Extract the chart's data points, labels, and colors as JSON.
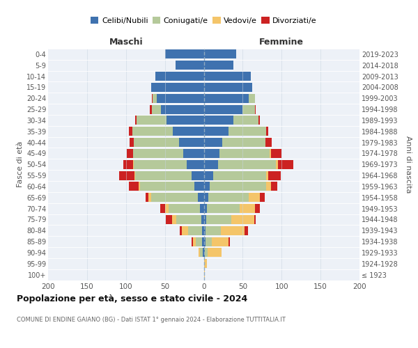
{
  "age_groups": [
    "100+",
    "95-99",
    "90-94",
    "85-89",
    "80-84",
    "75-79",
    "70-74",
    "65-69",
    "60-64",
    "55-59",
    "50-54",
    "45-49",
    "40-44",
    "35-39",
    "30-34",
    "25-29",
    "20-24",
    "15-19",
    "10-14",
    "5-9",
    "0-4"
  ],
  "birth_years": [
    "≤ 1923",
    "1924-1928",
    "1929-1933",
    "1934-1938",
    "1939-1943",
    "1944-1948",
    "1949-1953",
    "1954-1958",
    "1959-1963",
    "1964-1968",
    "1969-1973",
    "1974-1978",
    "1979-1983",
    "1984-1988",
    "1989-1993",
    "1994-1998",
    "1999-2003",
    "2004-2008",
    "2009-2013",
    "2014-2018",
    "2019-2023"
  ],
  "maschi": {
    "celibi": [
      0,
      0,
      1,
      2,
      2,
      3,
      5,
      8,
      12,
      16,
      22,
      26,
      32,
      40,
      48,
      55,
      60,
      68,
      62,
      36,
      50
    ],
    "coniugati": [
      0,
      0,
      4,
      8,
      18,
      32,
      40,
      60,
      70,
      72,
      68,
      65,
      58,
      52,
      38,
      12,
      6,
      0,
      0,
      0,
      0
    ],
    "vedovi": [
      0,
      0,
      2,
      4,
      8,
      6,
      5,
      3,
      2,
      1,
      1,
      0,
      0,
      0,
      0,
      0,
      0,
      0,
      0,
      0,
      0
    ],
    "divorziati": [
      0,
      0,
      0,
      2,
      3,
      8,
      6,
      4,
      12,
      20,
      12,
      8,
      5,
      4,
      2,
      2,
      1,
      0,
      0,
      0,
      0
    ]
  },
  "femmine": {
    "nubili": [
      0,
      0,
      1,
      2,
      2,
      3,
      4,
      6,
      8,
      12,
      18,
      20,
      24,
      32,
      38,
      50,
      58,
      62,
      60,
      38,
      42
    ],
    "coniugate": [
      0,
      0,
      4,
      8,
      20,
      32,
      42,
      52,
      72,
      68,
      75,
      65,
      55,
      48,
      32,
      16,
      8,
      0,
      0,
      0,
      0
    ],
    "vedove": [
      1,
      4,
      18,
      22,
      30,
      30,
      20,
      14,
      6,
      3,
      2,
      1,
      0,
      0,
      0,
      0,
      0,
      0,
      0,
      0,
      0
    ],
    "divorziate": [
      0,
      0,
      0,
      2,
      5,
      2,
      6,
      6,
      8,
      16,
      20,
      14,
      8,
      3,
      2,
      1,
      0,
      0,
      0,
      0,
      0
    ]
  },
  "colors": {
    "celibi": "#3f72af",
    "coniugati": "#b5c99a",
    "vedovi": "#f4c56a",
    "divorziati": "#cc2222"
  },
  "legend_labels": [
    "Celibi/Nubili",
    "Coniugati/e",
    "Vedovi/e",
    "Divorziati/e"
  ],
  "title": "Popolazione per età, sesso e stato civile - 2024",
  "subtitle": "COMUNE DI ENDINE GAIANO (BG) - Dati ISTAT 1° gennaio 2024 - Elaborazione TUTTITALIA.IT",
  "ylabel_left": "Fasce di età",
  "ylabel_right": "Anni di nascita",
  "label_maschi": "Maschi",
  "label_femmine": "Femmine",
  "xlim": 200,
  "background_color": "#ffffff",
  "plot_bg_color": "#edf1f7"
}
